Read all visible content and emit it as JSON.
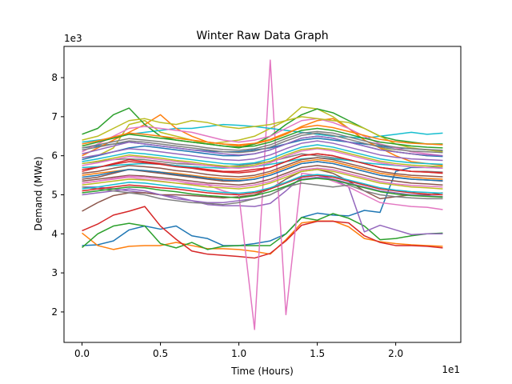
{
  "chart_data": {
    "type": "line",
    "title": "Winter Raw Data Graph",
    "xlabel": "Time (Hours)",
    "ylabel": "Demand (MWe)",
    "x_offset_label": "1e1",
    "y_offset_label": "1e3",
    "xlim": [
      -0.115,
      2.415
    ],
    "ylim": [
      1.22,
      8.8
    ],
    "x_ticks": [
      0.0,
      0.5,
      1.0,
      1.5,
      2.0
    ],
    "x_tick_labels": [
      "0.0",
      "0.5",
      "1.0",
      "1.5",
      "2.0"
    ],
    "y_ticks": [
      2,
      3,
      4,
      5,
      6,
      7,
      8
    ],
    "y_tick_labels": [
      "2",
      "3",
      "4",
      "5",
      "6",
      "7",
      "8"
    ],
    "grid": false,
    "colors": [
      "#1f77b4",
      "#ff7f0e",
      "#2ca02c",
      "#d62728",
      "#9467bd",
      "#8c564b",
      "#e377c2",
      "#7f7f7f",
      "#bcbd22",
      "#17becf"
    ],
    "x": [
      0.0,
      0.1,
      0.2,
      0.3,
      0.4,
      0.5,
      0.6,
      0.7,
      0.8,
      0.9,
      1.0,
      1.1,
      1.2,
      1.3,
      1.4,
      1.5,
      1.6,
      1.7,
      1.8,
      1.9,
      2.0,
      2.1,
      2.2,
      2.3
    ],
    "series": [
      {
        "values": [
          3.7,
          3.72,
          3.82,
          4.1,
          4.2,
          4.12,
          4.2,
          3.95,
          3.88,
          3.7,
          3.7,
          3.75,
          3.82,
          4.0,
          4.42,
          4.53,
          4.48,
          4.46,
          4.6,
          4.55,
          5.6,
          5.7,
          5.7,
          5.72
        ]
      },
      {
        "values": [
          4.02,
          3.7,
          3.6,
          3.68,
          3.7,
          3.7,
          3.78,
          3.7,
          3.62,
          3.62,
          3.6,
          3.55,
          3.48,
          3.85,
          4.28,
          4.33,
          4.33,
          4.18,
          3.88,
          3.8,
          3.75,
          3.72,
          3.7,
          3.68
        ]
      },
      {
        "values": [
          3.65,
          4.0,
          4.2,
          4.27,
          4.2,
          3.75,
          3.64,
          3.78,
          3.6,
          3.68,
          3.7,
          3.7,
          3.7,
          4.0,
          4.42,
          4.35,
          4.52,
          4.4,
          4.2,
          3.85,
          3.88,
          3.95,
          4.0,
          4.02
        ]
      },
      {
        "values": [
          4.08,
          4.25,
          4.48,
          4.58,
          4.7,
          4.2,
          3.86,
          3.56,
          3.48,
          3.45,
          3.42,
          3.38,
          3.5,
          3.82,
          4.22,
          4.32,
          4.32,
          4.28,
          3.95,
          3.78,
          3.7,
          3.7,
          3.68,
          3.64
        ]
      },
      {
        "values": [
          5.2,
          5.2,
          5.15,
          5.1,
          5.05,
          5.0,
          4.95,
          4.85,
          4.75,
          4.72,
          4.72,
          4.7,
          4.78,
          5.1,
          5.45,
          5.5,
          5.4,
          5.2,
          4.05,
          4.22,
          4.1,
          3.98,
          4.0,
          4.0
        ]
      },
      {
        "values": [
          4.58,
          4.8,
          4.98,
          5.05,
          5.05,
          5.0,
          5.0,
          4.98,
          4.95,
          4.92,
          4.95,
          5.0,
          5.15,
          5.4,
          5.6,
          5.65,
          5.55,
          5.35,
          5.1,
          4.9,
          4.95,
          5.0,
          5.0,
          5.05
        ]
      },
      {
        "values": [
          5.3,
          5.35,
          5.4,
          5.45,
          5.4,
          5.35,
          5.3,
          5.28,
          5.25,
          5.1,
          5.0,
          1.55,
          8.45,
          1.93,
          5.55,
          5.5,
          5.35,
          5.2,
          5.0,
          4.8,
          4.75,
          4.7,
          4.68,
          4.62
        ]
      },
      {
        "values": [
          5.8,
          5.85,
          5.9,
          5.92,
          5.9,
          5.85,
          5.8,
          5.78,
          5.75,
          5.72,
          5.75,
          5.8,
          5.85,
          5.95,
          6.05,
          6.0,
          5.95,
          5.9,
          5.8,
          5.7,
          5.65,
          5.6,
          5.6,
          5.58
        ]
      },
      {
        "values": [
          5.95,
          6.0,
          6.2,
          6.8,
          6.9,
          6.6,
          6.5,
          6.4,
          6.3,
          6.35,
          6.4,
          6.5,
          6.7,
          6.9,
          7.25,
          7.2,
          7.0,
          6.7,
          6.4,
          6.2,
          6.1,
          6.05,
          6.0,
          6.0
        ]
      },
      {
        "values": [
          6.35,
          6.4,
          6.45,
          6.55,
          6.6,
          6.65,
          6.7,
          6.7,
          6.75,
          6.8,
          6.78,
          6.75,
          6.7,
          6.65,
          6.6,
          6.55,
          6.5,
          6.48,
          6.45,
          6.5,
          6.55,
          6.6,
          6.55,
          6.58
        ]
      },
      {
        "values": [
          6.2,
          6.25,
          6.3,
          6.35,
          6.3,
          6.25,
          6.2,
          6.15,
          6.12,
          6.1,
          6.1,
          6.15,
          6.2,
          6.3,
          6.4,
          6.45,
          6.4,
          6.35,
          6.3,
          6.25,
          6.2,
          6.18,
          6.15,
          6.12
        ]
      },
      {
        "values": [
          6.0,
          6.2,
          6.4,
          6.6,
          6.8,
          7.05,
          6.7,
          6.5,
          6.35,
          6.3,
          6.25,
          6.3,
          6.4,
          6.55,
          6.75,
          6.9,
          6.95,
          6.7,
          6.4,
          6.2,
          6.0,
          5.85,
          5.8,
          5.75
        ]
      },
      {
        "values": [
          6.55,
          6.7,
          7.05,
          7.22,
          6.8,
          6.5,
          6.4,
          6.35,
          6.3,
          6.25,
          6.2,
          6.3,
          6.5,
          6.8,
          7.05,
          7.2,
          7.1,
          6.9,
          6.7,
          6.5,
          6.4,
          6.35,
          6.3,
          6.3
        ]
      },
      {
        "values": [
          5.6,
          5.7,
          5.8,
          5.9,
          5.85,
          5.8,
          5.75,
          5.7,
          5.65,
          5.6,
          5.6,
          5.65,
          5.7,
          5.85,
          6.0,
          6.05,
          6.0,
          5.9,
          5.8,
          5.7,
          5.65,
          5.6,
          5.58,
          5.55
        ]
      },
      {
        "values": [
          5.0,
          5.05,
          5.1,
          5.15,
          5.1,
          5.0,
          4.9,
          4.85,
          4.8,
          4.8,
          4.85,
          4.9,
          5.0,
          5.2,
          5.4,
          5.45,
          5.4,
          5.3,
          5.2,
          5.1,
          5.05,
          5.0,
          4.98,
          4.95
        ]
      },
      {
        "values": [
          5.4,
          5.45,
          5.55,
          5.65,
          5.6,
          5.55,
          5.5,
          5.45,
          5.4,
          5.35,
          5.35,
          5.4,
          5.5,
          5.65,
          5.8,
          5.85,
          5.8,
          5.7,
          5.6,
          5.5,
          5.45,
          5.4,
          5.38,
          5.35
        ]
      },
      {
        "values": [
          6.1,
          6.3,
          6.5,
          6.7,
          6.75,
          6.7,
          6.65,
          6.6,
          6.5,
          6.4,
          6.35,
          6.4,
          6.5,
          6.7,
          6.9,
          6.95,
          6.85,
          6.7,
          6.5,
          6.3,
          6.2,
          6.1,
          6.05,
          6.0
        ]
      },
      {
        "values": [
          5.2,
          5.15,
          5.1,
          5.05,
          5.0,
          4.9,
          4.85,
          4.8,
          4.78,
          4.75,
          4.8,
          4.9,
          5.0,
          5.2,
          5.3,
          5.25,
          5.2,
          5.25,
          5.1,
          5.0,
          4.95,
          4.92,
          4.9,
          4.9
        ]
      },
      {
        "values": [
          6.4,
          6.5,
          6.7,
          6.9,
          6.95,
          6.85,
          6.8,
          6.9,
          6.85,
          6.75,
          6.7,
          6.75,
          6.8,
          6.9,
          7.0,
          6.95,
          6.9,
          6.85,
          6.7,
          6.5,
          6.3,
          6.2,
          6.15,
          6.1
        ]
      },
      {
        "values": [
          5.7,
          5.72,
          5.75,
          5.78,
          5.8,
          5.78,
          5.75,
          5.72,
          5.7,
          5.68,
          5.7,
          5.72,
          5.78,
          5.85,
          5.92,
          5.95,
          5.92,
          5.88,
          5.82,
          5.78,
          5.75,
          5.72,
          5.7,
          5.68
        ]
      },
      {
        "values": [
          5.9,
          6.0,
          6.1,
          6.2,
          6.25,
          6.2,
          6.15,
          6.1,
          6.05,
          6.0,
          6.0,
          6.05,
          6.15,
          6.3,
          6.45,
          6.5,
          6.45,
          6.35,
          6.25,
          6.15,
          6.1,
          6.05,
          6.0,
          5.98
        ]
      },
      {
        "values": [
          5.5,
          5.55,
          5.6,
          5.65,
          5.62,
          5.58,
          5.55,
          5.5,
          5.45,
          5.42,
          5.4,
          5.45,
          5.55,
          5.7,
          5.85,
          5.9,
          5.85,
          5.75,
          5.65,
          5.55,
          5.5,
          5.45,
          5.42,
          5.4
        ]
      },
      {
        "values": [
          6.25,
          6.35,
          6.45,
          6.55,
          6.5,
          6.45,
          6.4,
          6.35,
          6.3,
          6.25,
          6.22,
          6.25,
          6.35,
          6.5,
          6.65,
          6.7,
          6.65,
          6.55,
          6.45,
          6.35,
          6.3,
          6.25,
          6.22,
          6.2
        ]
      },
      {
        "values": [
          5.1,
          5.15,
          5.2,
          5.25,
          5.22,
          5.18,
          5.15,
          5.1,
          5.05,
          5.02,
          5.0,
          5.05,
          5.15,
          5.3,
          5.45,
          5.5,
          5.45,
          5.35,
          5.25,
          5.15,
          5.1,
          5.05,
          5.02,
          5.0
        ]
      },
      {
        "values": [
          6.05,
          6.15,
          6.25,
          6.35,
          6.3,
          6.25,
          6.2,
          6.15,
          6.1,
          6.05,
          6.02,
          6.05,
          6.15,
          6.3,
          6.45,
          6.5,
          6.45,
          6.35,
          6.25,
          6.15,
          6.1,
          6.05,
          6.02,
          6.0
        ]
      },
      {
        "values": [
          5.35,
          5.4,
          5.45,
          5.5,
          5.48,
          5.44,
          5.4,
          5.35,
          5.3,
          5.28,
          5.25,
          5.3,
          5.4,
          5.55,
          5.7,
          5.75,
          5.7,
          5.6,
          5.5,
          5.4,
          5.35,
          5.3,
          5.28,
          5.25
        ]
      },
      {
        "values": [
          5.75,
          5.82,
          5.9,
          5.98,
          5.95,
          5.9,
          5.85,
          5.8,
          5.75,
          5.7,
          5.68,
          5.72,
          5.82,
          5.98,
          6.12,
          6.18,
          6.12,
          6.02,
          5.92,
          5.82,
          5.76,
          5.72,
          5.7,
          5.68
        ]
      },
      {
        "values": [
          6.15,
          6.22,
          6.3,
          6.38,
          6.35,
          6.3,
          6.25,
          6.2,
          6.15,
          6.1,
          6.08,
          6.12,
          6.22,
          6.38,
          6.52,
          6.58,
          6.52,
          6.42,
          6.32,
          6.22,
          6.16,
          6.12,
          6.1,
          6.08
        ]
      },
      {
        "values": [
          5.25,
          5.3,
          5.35,
          5.4,
          5.38,
          5.34,
          5.3,
          5.25,
          5.2,
          5.18,
          5.15,
          5.2,
          5.3,
          5.45,
          5.6,
          5.65,
          5.6,
          5.5,
          5.4,
          5.3,
          5.25,
          5.2,
          5.18,
          5.15
        ]
      },
      {
        "values": [
          5.85,
          5.92,
          6.0,
          6.08,
          6.05,
          6.0,
          5.95,
          5.9,
          5.85,
          5.8,
          5.78,
          5.82,
          5.92,
          6.08,
          6.22,
          6.28,
          6.22,
          6.12,
          6.02,
          5.92,
          5.86,
          5.82,
          5.8,
          5.78
        ]
      },
      {
        "values": [
          5.45,
          5.5,
          5.58,
          5.65,
          5.62,
          5.58,
          5.52,
          5.48,
          5.42,
          5.38,
          5.36,
          5.4,
          5.5,
          5.65,
          5.8,
          5.85,
          5.8,
          5.7,
          5.6,
          5.5,
          5.44,
          5.4,
          5.38,
          5.36
        ]
      },
      {
        "values": [
          6.3,
          6.38,
          6.48,
          6.58,
          6.55,
          6.5,
          6.45,
          6.4,
          6.35,
          6.3,
          6.28,
          6.32,
          6.42,
          6.58,
          6.72,
          6.78,
          6.72,
          6.62,
          6.52,
          6.42,
          6.36,
          6.32,
          6.3,
          6.28
        ]
      },
      {
        "values": [
          5.05,
          5.1,
          5.15,
          5.2,
          5.18,
          5.12,
          5.08,
          5.02,
          4.98,
          4.95,
          4.92,
          4.98,
          5.08,
          5.22,
          5.38,
          5.42,
          5.38,
          5.28,
          5.18,
          5.08,
          5.02,
          4.98,
          4.96,
          4.94
        ]
      },
      {
        "values": [
          5.65,
          5.7,
          5.78,
          5.85,
          5.82,
          5.78,
          5.72,
          5.68,
          5.62,
          5.58,
          5.56,
          5.6,
          5.7,
          5.85,
          6.0,
          6.05,
          6.0,
          5.9,
          5.8,
          5.7,
          5.64,
          5.6,
          5.58,
          5.56
        ]
      },
      {
        "values": [
          5.95,
          6.02,
          6.1,
          6.18,
          6.15,
          6.1,
          6.05,
          6.0,
          5.95,
          5.9,
          5.88,
          5.92,
          6.02,
          6.18,
          6.32,
          6.38,
          6.32,
          6.22,
          6.12,
          6.02,
          5.96,
          5.92,
          5.9,
          5.88
        ]
      },
      {
        "values": [
          5.55,
          5.6,
          5.68,
          5.75,
          5.72,
          5.68,
          5.62,
          5.58,
          5.52,
          5.48,
          5.46,
          5.5,
          5.6,
          5.75,
          5.9,
          5.95,
          5.9,
          5.8,
          5.7,
          5.6,
          5.54,
          5.5,
          5.48,
          5.46
        ]
      },
      {
        "values": [
          5.3,
          5.35,
          5.42,
          5.48,
          5.45,
          5.4,
          5.36,
          5.3,
          5.26,
          5.22,
          5.2,
          5.25,
          5.34,
          5.5,
          5.64,
          5.68,
          5.64,
          5.54,
          5.44,
          5.34,
          5.28,
          5.24,
          5.22,
          5.2
        ]
      },
      {
        "values": [
          6.2,
          6.28,
          6.36,
          6.44,
          6.4,
          6.36,
          6.3,
          6.26,
          6.2,
          6.16,
          6.14,
          6.18,
          6.28,
          6.44,
          6.58,
          6.62,
          6.58,
          6.48,
          6.38,
          6.28,
          6.22,
          6.18,
          6.16,
          6.14
        ]
      },
      {
        "values": [
          5.8,
          5.86,
          5.94,
          6.02,
          5.98,
          5.94,
          5.88,
          5.84,
          5.78,
          5.74,
          5.72,
          5.76,
          5.86,
          6.02,
          6.16,
          6.2,
          6.16,
          6.06,
          5.96,
          5.86,
          5.8,
          5.76,
          5.74,
          5.72
        ]
      },
      {
        "values": [
          5.15,
          5.2,
          5.26,
          5.32,
          5.3,
          5.25,
          5.2,
          5.16,
          5.1,
          5.06,
          5.04,
          5.08,
          5.18,
          5.32,
          5.48,
          5.52,
          5.48,
          5.38,
          5.28,
          5.18,
          5.12,
          5.08,
          5.06,
          5.04
        ]
      }
    ]
  }
}
